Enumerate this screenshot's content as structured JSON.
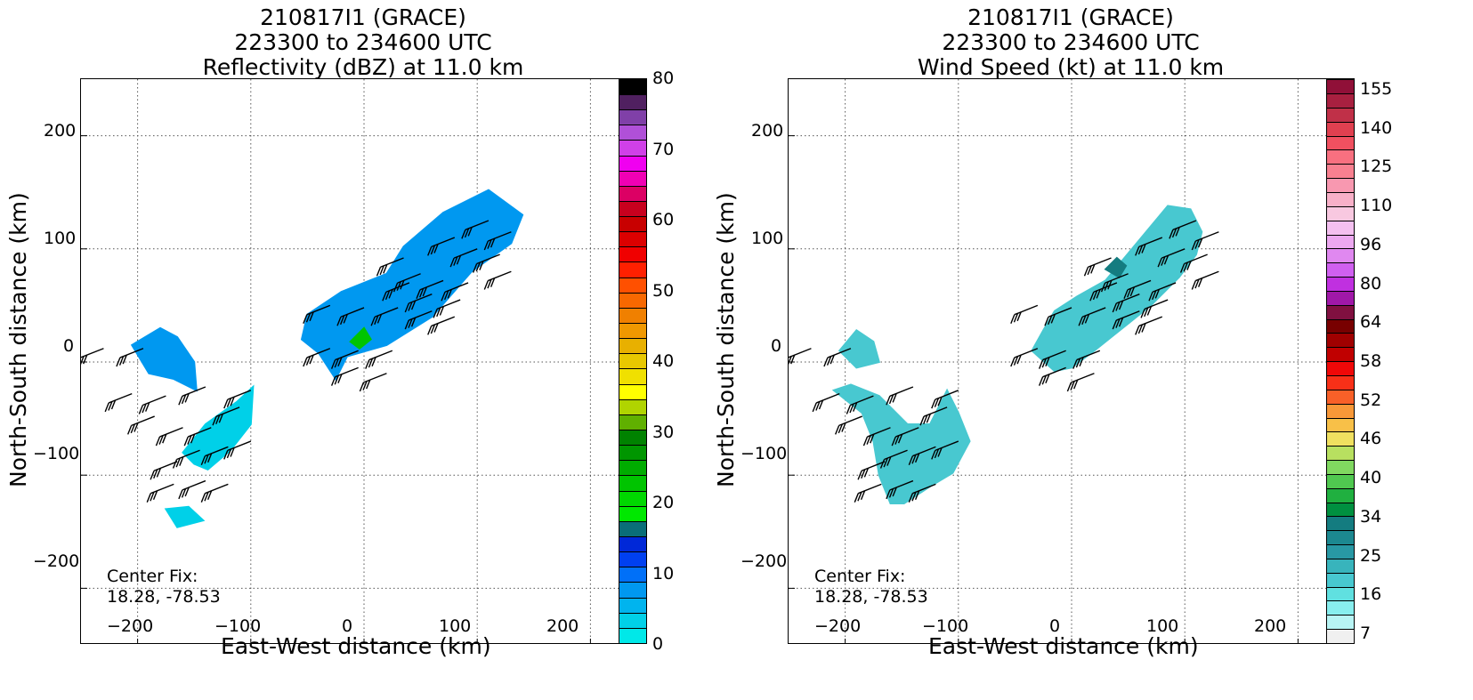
{
  "panels": [
    {
      "title_lines": [
        "210817I1 (GRACE)",
        "223300 to 234600 UTC",
        "Reflectivity (dBZ) at 11.0 km"
      ],
      "xlabel": "East-West distance (km)",
      "ylabel": "North-South distance (km)",
      "center_fix_label": "Center Fix:",
      "center_fix_value": "18.28, -78.53",
      "colorbar_ticks": [
        "0",
        "10",
        "20",
        "30",
        "40",
        "50",
        "60",
        "70",
        "80"
      ],
      "colorbar_colors": [
        "#00e8e8",
        "#00d0e8",
        "#00b4ee",
        "#0098f0",
        "#0070f8",
        "#0040f0",
        "#0028d8",
        "#0a6e78",
        "#00e800",
        "#00d800",
        "#00c400",
        "#00ac00",
        "#009600",
        "#008200",
        "#60b000",
        "#b0d400",
        "#ffff00",
        "#f0e000",
        "#e8c800",
        "#e8b000",
        "#f09800",
        "#f08000",
        "#f86800",
        "#ff5000",
        "#ff2000",
        "#f00000",
        "#dc0000",
        "#c80000",
        "#c8001e",
        "#dc0064",
        "#f000b4",
        "#f000f0",
        "#d040e8",
        "#b050d8",
        "#8040a8",
        "#502060",
        "#000000"
      ]
    },
    {
      "title_lines": [
        "210817I1 (GRACE)",
        "223300 to 234600 UTC",
        "Wind Speed (kt) at 11.0 km"
      ],
      "xlabel": "East-West distance (km)",
      "ylabel": "North-South distance (km)",
      "center_fix_label": "Center Fix:",
      "center_fix_value": "18.28, -78.53",
      "colorbar_ticks": [
        "7",
        "16",
        "25",
        "34",
        "40",
        "46",
        "52",
        "58",
        "64",
        "80",
        "96",
        "110",
        "125",
        "140",
        "155"
      ],
      "colorbar_colors": [
        "#f0f0f0",
        "#b8f4f4",
        "#88eeee",
        "#60e0e0",
        "#48c8d0",
        "#38b4bc",
        "#2898a4",
        "#1c8890",
        "#147c80",
        "#009040",
        "#20b040",
        "#50c850",
        "#80d860",
        "#b8e060",
        "#f0e060",
        "#f8c048",
        "#f89838",
        "#f86028",
        "#f83018",
        "#f00808",
        "#c00000",
        "#a00000",
        "#780000",
        "#801040",
        "#a018a8",
        "#c030e0",
        "#d060f0",
        "#e088f0",
        "#eca8f0",
        "#f4c0f0",
        "#f8c8e0",
        "#f8b0c8",
        "#f898b0",
        "#f88090",
        "#f87080",
        "#f05060",
        "#e04050",
        "#c03048",
        "#a82040",
        "#901038"
      ]
    }
  ],
  "axis_ticks": {
    "x": [
      "−200",
      "−100",
      "0",
      "100",
      "200"
    ],
    "y": [
      "200",
      "100",
      "0",
      "−100",
      "−200"
    ]
  },
  "chart_data": [
    {
      "type": "heatmap",
      "title": "210817I1 (GRACE) 223300 to 234600 UTC Reflectivity (dBZ) at 11.0 km",
      "xlabel": "East-West distance (km)",
      "ylabel": "North-South distance (km)",
      "xlim": [
        -250,
        250
      ],
      "ylim": [
        -250,
        250
      ],
      "grid": true,
      "colorbar": {
        "label": "dBZ",
        "range": [
          0,
          80
        ]
      },
      "regions": [
        {
          "name": "northeast band",
          "polygon": [
            [
              -55,
              20
            ],
            [
              -50,
              42
            ],
            [
              -20,
              62
            ],
            [
              20,
              78
            ],
            [
              35,
              102
            ],
            [
              70,
              132
            ],
            [
              110,
              152
            ],
            [
              140,
              130
            ],
            [
              130,
              105
            ],
            [
              95,
              80
            ],
            [
              60,
              40
            ],
            [
              20,
              15
            ],
            [
              -15,
              5
            ],
            [
              -25,
              -15
            ],
            [
              -40,
              8
            ]
          ],
          "value": 8
        },
        {
          "name": "west rainband",
          "polygon": [
            [
              -205,
              15
            ],
            [
              -180,
              30
            ],
            [
              -165,
              22
            ],
            [
              -150,
              0
            ],
            [
              -148,
              -25
            ],
            [
              -168,
              -15
            ],
            [
              -190,
              -10
            ]
          ],
          "value": 7
        },
        {
          "name": "southwest rainband",
          "polygon": [
            [
              -160,
              -80
            ],
            [
              -140,
              -55
            ],
            [
              -112,
              -35
            ],
            [
              -98,
              -22
            ],
            [
              -100,
              -55
            ],
            [
              -118,
              -78
            ],
            [
              -138,
              -95
            ],
            [
              -150,
              -90
            ]
          ],
          "value": 4
        },
        {
          "name": "south fragment",
          "polygon": [
            [
              -175,
              -130
            ],
            [
              -155,
              -128
            ],
            [
              -142,
              -140
            ],
            [
              -165,
              -146
            ]
          ],
          "value": 3
        },
        {
          "name": "center core",
          "polygon": [
            [
              -12,
              18
            ],
            [
              0,
              30
            ],
            [
              6,
              20
            ],
            [
              -4,
              12
            ]
          ],
          "value": 22
        }
      ],
      "wind_barbs": [
        {
          "x": -230,
          "y": 12
        },
        {
          "x": -195,
          "y": 12
        },
        {
          "x": -205,
          "y": -28
        },
        {
          "x": -175,
          "y": -30
        },
        {
          "x": -140,
          "y": -22
        },
        {
          "x": -185,
          "y": -48
        },
        {
          "x": -160,
          "y": -58
        },
        {
          "x": -135,
          "y": -58
        },
        {
          "x": -110,
          "y": -40
        },
        {
          "x": -100,
          "y": -25
        },
        {
          "x": -165,
          "y": -88
        },
        {
          "x": -145,
          "y": -78
        },
        {
          "x": -120,
          "y": -75
        },
        {
          "x": -100,
          "y": -70
        },
        {
          "x": -168,
          "y": -108
        },
        {
          "x": -140,
          "y": -105
        },
        {
          "x": -120,
          "y": -108
        },
        {
          "x": -30,
          "y": 50
        },
        {
          "x": 0,
          "y": 48
        },
        {
          "x": 30,
          "y": 48
        },
        {
          "x": 60,
          "y": 45
        },
        {
          "x": 80,
          "y": 40
        },
        {
          "x": -30,
          "y": 12
        },
        {
          "x": -5,
          "y": 10
        },
        {
          "x": 25,
          "y": 10
        },
        {
          "x": -5,
          "y": -5
        },
        {
          "x": 20,
          "y": -10
        },
        {
          "x": 35,
          "y": 92
        },
        {
          "x": 50,
          "y": 78
        },
        {
          "x": 70,
          "y": 72
        },
        {
          "x": 92,
          "y": 70
        },
        {
          "x": 40,
          "y": 70
        },
        {
          "x": 60,
          "y": 60
        },
        {
          "x": 85,
          "y": 55
        },
        {
          "x": 110,
          "y": 125
        },
        {
          "x": 130,
          "y": 115
        },
        {
          "x": 80,
          "y": 110
        },
        {
          "x": 100,
          "y": 100
        },
        {
          "x": 120,
          "y": 95
        },
        {
          "x": 130,
          "y": 80
        }
      ]
    },
    {
      "type": "heatmap",
      "title": "210817I1 (GRACE) 223300 to 234600 UTC Wind Speed (kt) at 11.0 km",
      "xlabel": "East-West distance (km)",
      "ylabel": "North-South distance (km)",
      "xlim": [
        -250,
        250
      ],
      "ylim": [
        -250,
        250
      ],
      "grid": true,
      "colorbar": {
        "label": "kt",
        "range": [
          7,
          160
        ]
      },
      "regions": [
        {
          "name": "northeast band",
          "polygon": [
            [
              -35,
              10
            ],
            [
              -25,
              28
            ],
            [
              -15,
              45
            ],
            [
              5,
              58
            ],
            [
              30,
              72
            ],
            [
              55,
              102
            ],
            [
              85,
              138
            ],
            [
              105,
              135
            ],
            [
              115,
              115
            ],
            [
              110,
              95
            ],
            [
              95,
              75
            ],
            [
              70,
              50
            ],
            [
              45,
              30
            ],
            [
              20,
              10
            ],
            [
              0,
              -5
            ],
            [
              -15,
              -8
            ]
          ],
          "value": 26
        },
        {
          "name": "west rainband",
          "polygon": [
            [
              -210,
              -25
            ],
            [
              -185,
              -45
            ],
            [
              -175,
              -70
            ],
            [
              -170,
              -100
            ],
            [
              -160,
              -125
            ],
            [
              -148,
              -125
            ],
            [
              -125,
              -110
            ],
            [
              -105,
              -98
            ],
            [
              -90,
              -70
            ],
            [
              -100,
              -45
            ],
            [
              -110,
              -25
            ],
            [
              -125,
              -55
            ],
            [
              -145,
              -55
            ],
            [
              -170,
              -30
            ],
            [
              -195,
              -20
            ]
          ],
          "value": 23
        },
        {
          "name": "north arm",
          "polygon": [
            [
              -205,
              10
            ],
            [
              -190,
              28
            ],
            [
              -175,
              18
            ],
            [
              -170,
              0
            ],
            [
              -190,
              -5
            ]
          ],
          "value": 24
        },
        {
          "name": "wind maximum",
          "polygon": [
            [
              30,
              82
            ],
            [
              40,
              92
            ],
            [
              48,
              85
            ],
            [
              42,
              75
            ]
          ],
          "value": 40
        }
      ],
      "wind_barbs": [
        {
          "x": -230,
          "y": 12
        },
        {
          "x": -195,
          "y": 12
        },
        {
          "x": -205,
          "y": -28
        },
        {
          "x": -175,
          "y": -30
        },
        {
          "x": -140,
          "y": -22
        },
        {
          "x": -185,
          "y": -48
        },
        {
          "x": -160,
          "y": -58
        },
        {
          "x": -135,
          "y": -58
        },
        {
          "x": -110,
          "y": -40
        },
        {
          "x": -100,
          "y": -25
        },
        {
          "x": -165,
          "y": -88
        },
        {
          "x": -145,
          "y": -78
        },
        {
          "x": -120,
          "y": -75
        },
        {
          "x": -100,
          "y": -70
        },
        {
          "x": -168,
          "y": -108
        },
        {
          "x": -140,
          "y": -105
        },
        {
          "x": -120,
          "y": -108
        },
        {
          "x": -30,
          "y": 50
        },
        {
          "x": 0,
          "y": 48
        },
        {
          "x": 30,
          "y": 48
        },
        {
          "x": 60,
          "y": 45
        },
        {
          "x": 80,
          "y": 40
        },
        {
          "x": -30,
          "y": 12
        },
        {
          "x": -5,
          "y": 10
        },
        {
          "x": 25,
          "y": 10
        },
        {
          "x": -5,
          "y": -5
        },
        {
          "x": 20,
          "y": -10
        },
        {
          "x": 35,
          "y": 92
        },
        {
          "x": 50,
          "y": 78
        },
        {
          "x": 70,
          "y": 72
        },
        {
          "x": 92,
          "y": 70
        },
        {
          "x": 40,
          "y": 70
        },
        {
          "x": 60,
          "y": 60
        },
        {
          "x": 85,
          "y": 55
        },
        {
          "x": 110,
          "y": 125
        },
        {
          "x": 130,
          "y": 115
        },
        {
          "x": 80,
          "y": 110
        },
        {
          "x": 100,
          "y": 100
        },
        {
          "x": 120,
          "y": 95
        },
        {
          "x": 130,
          "y": 80
        }
      ]
    }
  ]
}
